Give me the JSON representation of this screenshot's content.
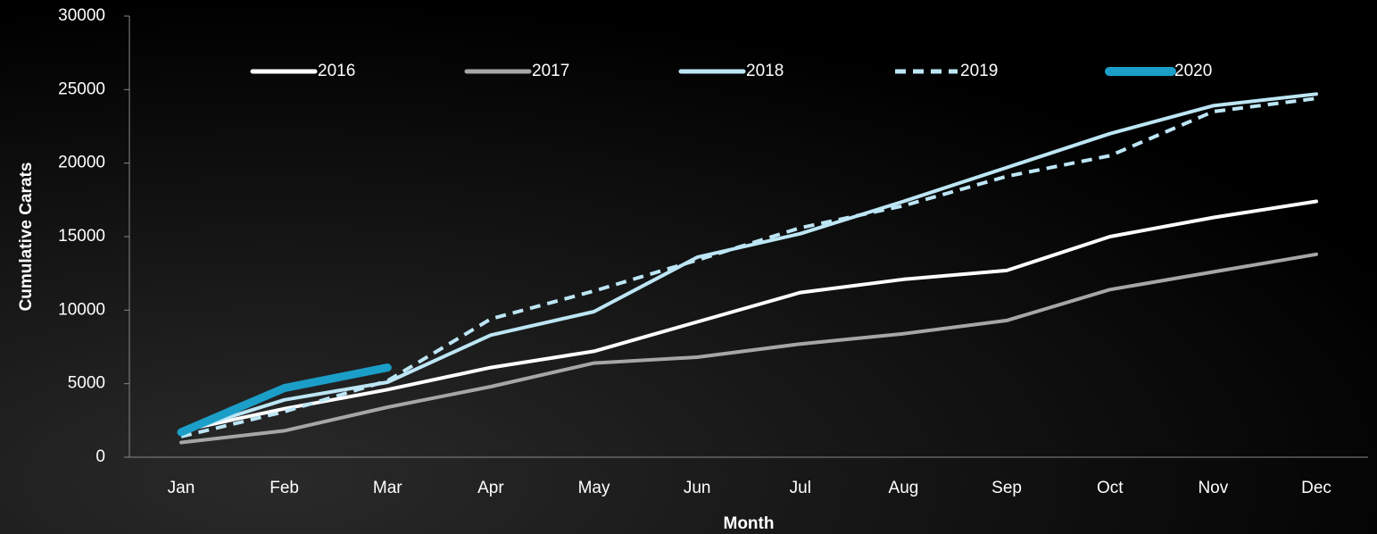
{
  "chart_data": {
    "type": "line",
    "x_label": "Month",
    "y_label": "Cumulative Carats",
    "categories": [
      "Jan",
      "Feb",
      "Mar",
      "Apr",
      "May",
      "Jun",
      "Jul",
      "Aug",
      "Sep",
      "Oct",
      "Nov",
      "Dec"
    ],
    "series": [
      {
        "name": "2016",
        "color": "#ffffff",
        "style": "solid",
        "values": [
          1800,
          3300,
          4600,
          6100,
          7200,
          9200,
          11200,
          12100,
          12700,
          15000,
          16300,
          17400
        ]
      },
      {
        "name": "2017",
        "color": "#a6a6a6",
        "style": "solid",
        "values": [
          1000,
          1800,
          3400,
          4800,
          6400,
          6800,
          7700,
          8400,
          9300,
          11400,
          12600,
          13800
        ]
      },
      {
        "name": "2018",
        "color": "#bde6f5",
        "style": "solid",
        "values": [
          1700,
          3900,
          5100,
          8300,
          9900,
          13600,
          15200,
          17400,
          19700,
          22000,
          23900,
          24700
        ]
      },
      {
        "name": "2019",
        "color": "#bde6f5",
        "style": "dashed",
        "values": [
          1400,
          3100,
          5200,
          9400,
          11300,
          13400,
          15600,
          17100,
          19100,
          20500,
          23500,
          24400
        ]
      },
      {
        "name": "2020",
        "color": "#1b9fc9",
        "style": "bold",
        "values": [
          1700,
          4700,
          6100,
          null,
          null,
          null,
          null,
          null,
          null,
          null,
          null,
          null
        ]
      }
    ],
    "ylim": [
      0,
      30000
    ],
    "yticks": [
      0,
      5000,
      10000,
      15000,
      20000,
      25000,
      30000
    ],
    "grid": false,
    "legend": "top"
  }
}
